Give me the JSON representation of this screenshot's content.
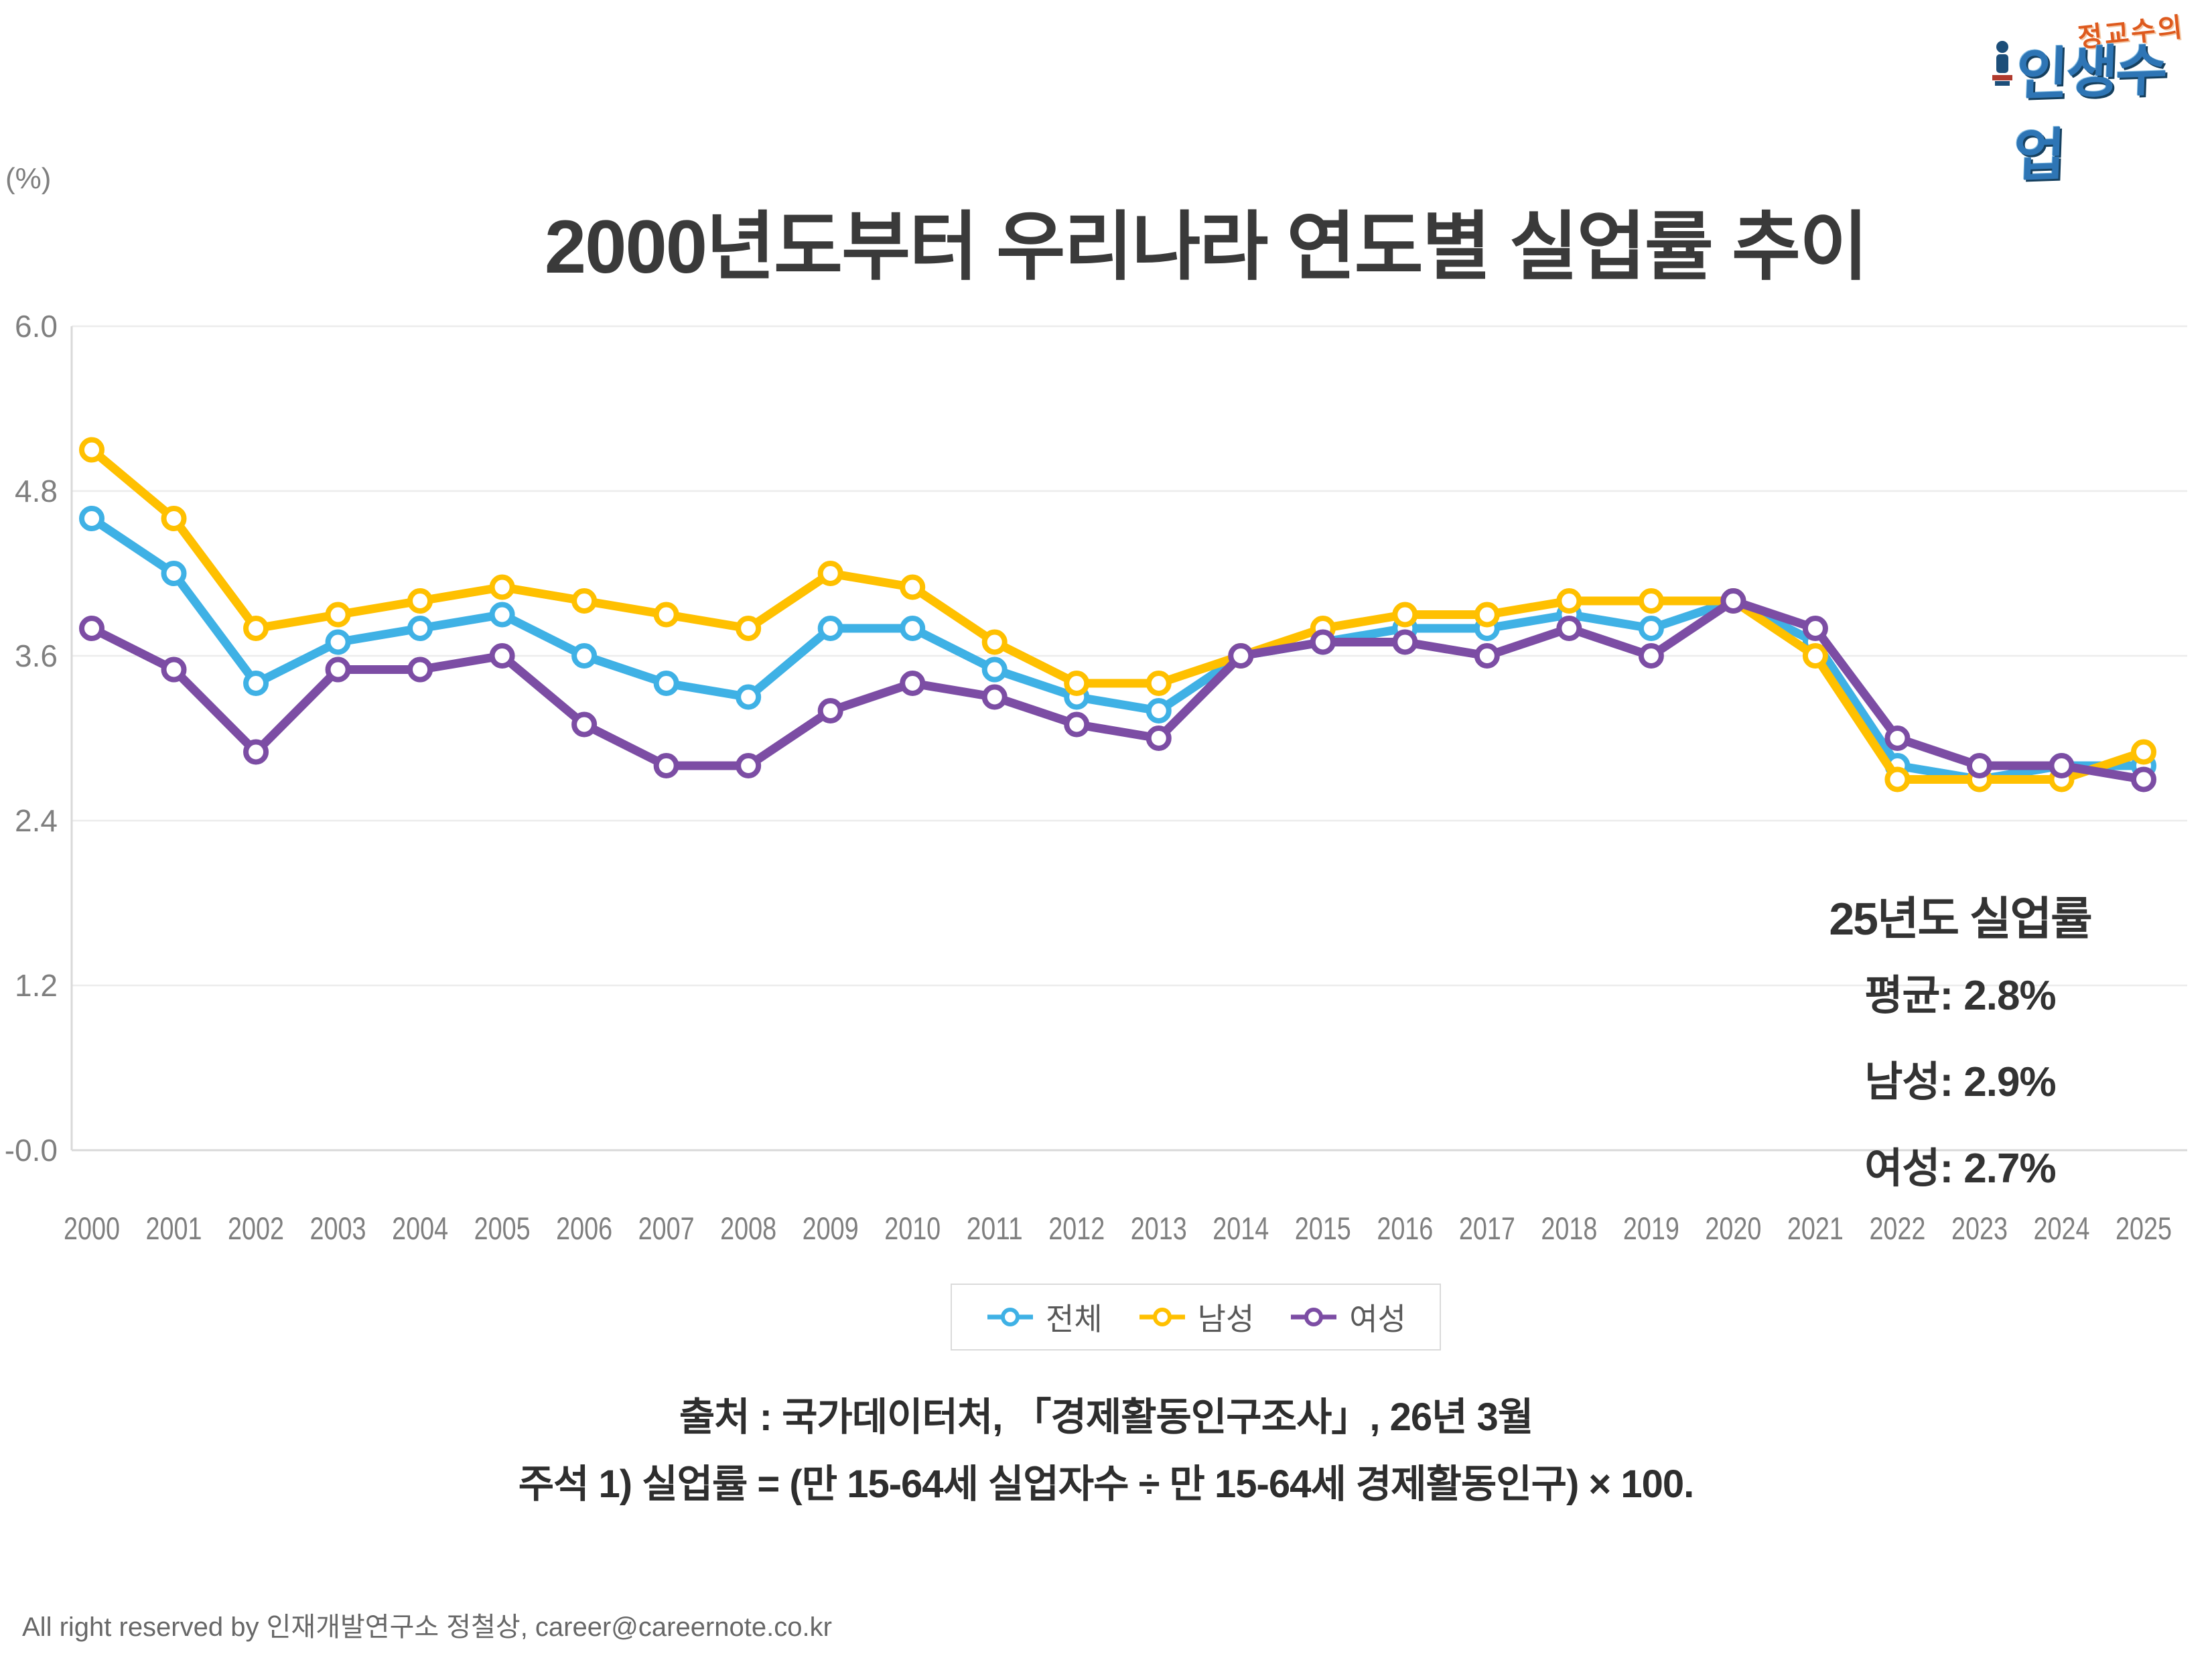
{
  "logo": {
    "top_text": "정교수의",
    "main_text": "인생수업"
  },
  "chart": {
    "unit_label": "(%)"
  },
  "chart_data": {
    "type": "line",
    "title": "2000년도부터 우리나라 연도별 실업률 추이",
    "categories": [
      2000,
      2001,
      2002,
      2003,
      2004,
      2005,
      2006,
      2007,
      2008,
      2009,
      2010,
      2011,
      2012,
      2013,
      2014,
      2015,
      2016,
      2017,
      2018,
      2019,
      2020,
      2021,
      2022,
      2023,
      2024,
      2025
    ],
    "series": [
      {
        "name": "전체",
        "color": "#3FB1E5",
        "values": [
          4.6,
          4.2,
          3.4,
          3.7,
          3.8,
          3.9,
          3.6,
          3.4,
          3.3,
          3.8,
          3.8,
          3.5,
          3.3,
          3.2,
          3.6,
          3.7,
          3.8,
          3.8,
          3.9,
          3.8,
          4.0,
          3.7,
          2.8,
          2.7,
          2.8,
          2.8
        ]
      },
      {
        "name": "남성",
        "color": "#FFC000",
        "values": [
          5.1,
          4.6,
          3.8,
          3.9,
          4.0,
          4.1,
          4.0,
          3.9,
          3.8,
          4.2,
          4.1,
          3.7,
          3.4,
          3.4,
          3.6,
          3.8,
          3.9,
          3.9,
          4.0,
          4.0,
          4.0,
          3.6,
          2.7,
          2.7,
          2.7,
          2.9
        ]
      },
      {
        "name": "여성",
        "color": "#7C4DA4",
        "values": [
          3.8,
          3.5,
          2.9,
          3.5,
          3.5,
          3.6,
          3.1,
          2.8,
          2.8,
          3.2,
          3.4,
          3.3,
          3.1,
          3.0,
          3.6,
          3.7,
          3.7,
          3.6,
          3.8,
          3.6,
          4.0,
          3.8,
          3.0,
          2.8,
          2.8,
          2.7
        ]
      }
    ],
    "xlabel": "",
    "ylabel": "(%)",
    "ylim": [
      0,
      6.0
    ],
    "y_tick_step": 1.2,
    "grid": true,
    "legend_position": "bottom"
  },
  "annotation": {
    "title": "25년도 실업률",
    "lines": [
      "평균: 2.8%",
      "남성: 2.9%",
      "여성: 2.7%"
    ]
  },
  "notes": {
    "source": "출처 : 국가데이터처, 「경제활동인구조사」, 26년 3월",
    "formula": "주석 1) 실업률 = (만 15-64세 실업자수 ÷ 만 15-64세 경제활동인구) × 100."
  },
  "footer": {
    "copyright": "All right reserved by 인재개발연구소 정철상, career@careernote.co.kr"
  }
}
